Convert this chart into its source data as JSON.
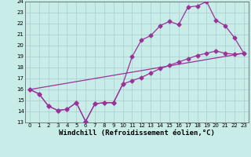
{
  "xlabel": "Windchill (Refroidissement éolien,°C)",
  "xlim": [
    -0.5,
    23.5
  ],
  "ylim": [
    13,
    24
  ],
  "xticks": [
    0,
    1,
    2,
    3,
    4,
    5,
    6,
    7,
    8,
    9,
    10,
    11,
    12,
    13,
    14,
    15,
    16,
    17,
    18,
    19,
    20,
    21,
    22,
    23
  ],
  "yticks": [
    13,
    14,
    15,
    16,
    17,
    18,
    19,
    20,
    21,
    22,
    23,
    24
  ],
  "bg_color": "#c8ece8",
  "grid_color": "#aacccc",
  "line_color": "#993399",
  "line1_x": [
    0,
    1,
    2,
    3,
    4,
    5,
    6,
    7,
    8,
    9,
    10,
    11,
    12,
    13,
    14,
    15,
    16,
    17,
    18,
    19,
    20,
    21,
    22,
    23
  ],
  "line1_y": [
    16.0,
    15.6,
    14.5,
    14.1,
    14.2,
    14.8,
    13.1,
    14.7,
    14.8,
    14.8,
    16.5,
    19.0,
    20.5,
    20.9,
    21.8,
    22.2,
    21.9,
    23.5,
    23.6,
    24.0,
    22.3,
    21.8,
    20.7,
    19.3
  ],
  "line2_x": [
    0,
    1,
    2,
    3,
    4,
    5,
    6,
    7,
    8,
    9,
    10,
    11,
    12,
    13,
    14,
    15,
    16,
    17,
    18,
    19,
    20,
    21,
    22,
    23
  ],
  "line2_y": [
    16.0,
    15.6,
    14.5,
    14.1,
    14.2,
    14.8,
    13.1,
    14.7,
    14.8,
    14.8,
    16.5,
    16.8,
    17.1,
    17.5,
    17.9,
    18.2,
    18.5,
    18.8,
    19.1,
    19.3,
    19.5,
    19.3,
    19.2,
    19.3
  ],
  "line3_x": [
    0,
    23
  ],
  "line3_y": [
    16.0,
    19.3
  ],
  "marker": "D",
  "marker_size": 2.5,
  "linewidth": 0.9,
  "tick_fontsize": 5.0,
  "xlabel_fontsize": 6.5
}
